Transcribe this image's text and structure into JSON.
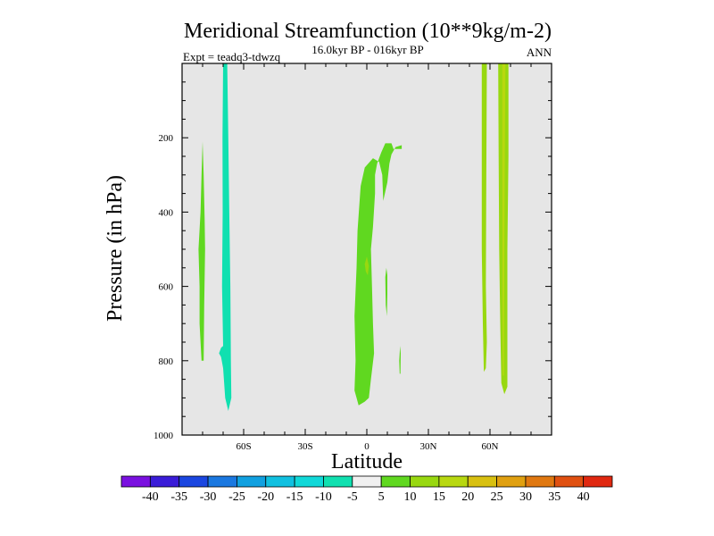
{
  "chart_data": {
    "type": "heatmap",
    "title": "Meridional Streamfunction (10**9kg/m-2)",
    "subtitle": "16.0kyr BP - 016kyr BP",
    "left_label": "Expt = teadq3-tdwzq",
    "right_label": "ANN",
    "xlabel": "Latitude",
    "ylabel": "Pressure (in hPa)",
    "xlim": [
      -90,
      90
    ],
    "ylim": [
      1000,
      0
    ],
    "x_ticks": [
      {
        "value": -60,
        "label": "60S"
      },
      {
        "value": -30,
        "label": "30S"
      },
      {
        "value": 0,
        "label": "0"
      },
      {
        "value": 30,
        "label": "30N"
      },
      {
        "value": 60,
        "label": "60N"
      }
    ],
    "y_ticks": [
      {
        "value": 200,
        "label": "200"
      },
      {
        "value": 400,
        "label": "400"
      },
      {
        "value": 600,
        "label": "600"
      },
      {
        "value": 800,
        "label": "800"
      },
      {
        "value": 1000,
        "label": "1000"
      }
    ],
    "background_color": "#e6e6e6",
    "colorbar": {
      "levels": [
        -40,
        -35,
        -30,
        -25,
        -20,
        -15,
        -10,
        -5,
        5,
        10,
        15,
        20,
        25,
        30,
        35,
        40
      ],
      "labels": [
        "-40",
        "-35",
        "-30",
        "-25",
        "-20",
        "-15",
        "-10",
        "-5",
        "5",
        "10",
        "15",
        "20",
        "25",
        "30",
        "35",
        "40"
      ],
      "colors": [
        "#7a10e0",
        "#3a1cd8",
        "#1a46e0",
        "#1a78e0",
        "#10a0e0",
        "#10c0e0",
        "#10d8d8",
        "#10e0b0",
        "#f0f0f0",
        "#60d820",
        "#98d810",
        "#b8d810",
        "#d8c010",
        "#e0a010",
        "#e07810",
        "#e05010",
        "#e02810"
      ]
    },
    "regions": [
      {
        "name": "southern-band-1",
        "value": 7.5,
        "color_index": 9,
        "points": [
          [
            -80.5,
            800
          ],
          [
            -81.5,
            700
          ],
          [
            -81.5,
            600
          ],
          [
            -82,
            500
          ],
          [
            -81,
            400
          ],
          [
            -80.5,
            300
          ],
          [
            -80,
            210
          ],
          [
            -79.5,
            300
          ],
          [
            -79,
            420
          ],
          [
            -78.8,
            500
          ],
          [
            -79.2,
            650
          ],
          [
            -79.5,
            800
          ]
        ]
      },
      {
        "name": "southern-band-2",
        "value": -7.5,
        "color_index": 7,
        "points": [
          [
            -70,
            0
          ],
          [
            -68,
            0
          ],
          [
            -67.5,
            200
          ],
          [
            -67,
            400
          ],
          [
            -66.5,
            600
          ],
          [
            -66.2,
            800
          ],
          [
            -66,
            900
          ],
          [
            -67.5,
            935
          ],
          [
            -69,
            900
          ],
          [
            -70,
            820
          ],
          [
            -71,
            790
          ],
          [
            -72,
            780
          ],
          [
            -71,
            765
          ],
          [
            -70,
            760
          ],
          [
            -70.5,
            600
          ],
          [
            -70.2,
            400
          ],
          [
            -70.3,
            200
          ]
        ]
      },
      {
        "name": "equatorial-cell-main",
        "value": 7.5,
        "color_index": 9,
        "points": [
          [
            -5,
            900
          ],
          [
            -4,
            920
          ],
          [
            -1,
            910
          ],
          [
            1,
            900
          ],
          [
            2,
            850
          ],
          [
            3.5,
            780
          ],
          [
            3,
            700
          ],
          [
            2.5,
            600
          ],
          [
            2,
            500
          ],
          [
            3,
            440
          ],
          [
            4,
            350
          ],
          [
            4,
            300
          ],
          [
            5,
            270
          ],
          [
            7,
            240
          ],
          [
            9,
            215
          ],
          [
            12,
            215
          ],
          [
            13,
            230
          ],
          [
            17,
            230
          ],
          [
            17,
            220
          ],
          [
            14,
            225
          ],
          [
            12,
            245
          ],
          [
            11,
            270
          ],
          [
            10,
            320
          ],
          [
            8,
            370
          ],
          [
            7.5,
            300
          ],
          [
            6,
            265
          ],
          [
            3,
            255
          ],
          [
            -1,
            280
          ],
          [
            -3,
            330
          ],
          [
            -4.5,
            450
          ],
          [
            -5,
            550
          ],
          [
            -6,
            680
          ],
          [
            -5.5,
            800
          ],
          [
            -6,
            880
          ]
        ]
      },
      {
        "name": "equatorial-cell-core",
        "value": 12.5,
        "color_index": 10,
        "points": [
          [
            -1,
            540
          ],
          [
            0,
            520
          ],
          [
            1,
            545
          ],
          [
            0.5,
            570
          ],
          [
            -0.5,
            560
          ]
        ]
      },
      {
        "name": "equatorial-patch-1",
        "value": 7.5,
        "color_index": 9,
        "points": [
          [
            9,
            575
          ],
          [
            9.5,
            550
          ],
          [
            10,
            570
          ],
          [
            10,
            620
          ],
          [
            9.8,
            680
          ],
          [
            9.2,
            650
          ]
        ]
      },
      {
        "name": "equatorial-patch-2",
        "value": 7.5,
        "color_index": 9,
        "points": [
          [
            16,
            835
          ],
          [
            15.8,
            800
          ],
          [
            16.2,
            760
          ],
          [
            16.5,
            780
          ],
          [
            16.4,
            835
          ]
        ]
      },
      {
        "name": "northern-band-1",
        "value": 12.5,
        "color_index": 10,
        "points": [
          [
            56,
            0
          ],
          [
            58.5,
            0
          ],
          [
            58.2,
            300
          ],
          [
            58,
            600
          ],
          [
            58.5,
            750
          ],
          [
            58,
            820
          ],
          [
            57,
            830
          ],
          [
            56.5,
            700
          ],
          [
            56,
            500
          ],
          [
            56,
            300
          ]
        ]
      },
      {
        "name": "northern-band-2",
        "value": 12.5,
        "color_index": 10,
        "points": [
          [
            64,
            0
          ],
          [
            69,
            0
          ],
          [
            69,
            250
          ],
          [
            68.5,
            500
          ],
          [
            68.5,
            760
          ],
          [
            68.5,
            870
          ],
          [
            67,
            890
          ],
          [
            65.5,
            860
          ],
          [
            65,
            700
          ],
          [
            64.5,
            500
          ],
          [
            64.2,
            250
          ]
        ]
      },
      {
        "name": "northern-band-2-core",
        "value": 17.5,
        "color_index": 11,
        "points": [
          [
            66,
            0
          ],
          [
            67.5,
            0
          ],
          [
            67.2,
            250
          ],
          [
            67,
            500
          ],
          [
            66.8,
            840
          ],
          [
            66.2,
            840
          ],
          [
            66.1,
            500
          ],
          [
            66,
            250
          ]
        ]
      }
    ]
  }
}
